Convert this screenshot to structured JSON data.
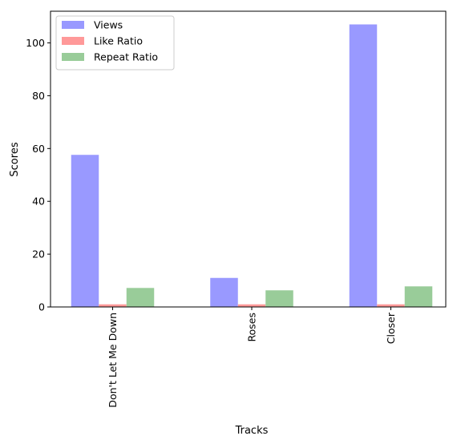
{
  "chart_data": {
    "type": "bar",
    "title": "",
    "xlabel": "Tracks",
    "ylabel": "Scores",
    "categories": [
      "Don't Let Me Down",
      "Roses",
      "Closer"
    ],
    "series": [
      {
        "name": "Views",
        "values": [
          57.6,
          11.0,
          107.0
        ],
        "color": "#9999ff"
      },
      {
        "name": "Like Ratio",
        "values": [
          1.0,
          1.0,
          1.0
        ],
        "color": "#ff9999"
      },
      {
        "name": "Repeat Ratio",
        "values": [
          7.2,
          6.3,
          7.8
        ],
        "color": "#99cc99"
      }
    ],
    "ylim": [
      0,
      112
    ],
    "yticks": [
      0,
      20,
      40,
      60,
      80,
      100
    ],
    "grid": false,
    "legend_position": "top-left",
    "x_tick_rotation": "vertical"
  }
}
